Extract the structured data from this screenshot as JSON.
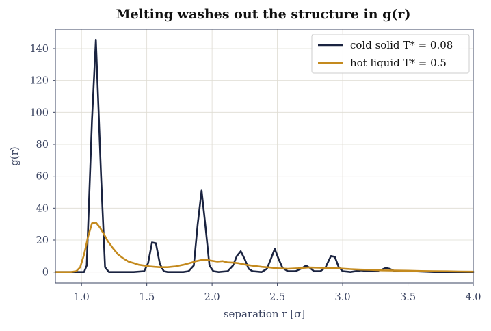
{
  "chart_data": {
    "type": "line",
    "title": "Melting washes out the structure in g(r)",
    "xlabel": "separation  r  [σ]",
    "ylabel": "g(r)",
    "xlim": [
      0.8,
      4.0
    ],
    "ylim": [
      -7,
      152
    ],
    "grid": true,
    "legend_position": "top-right",
    "x_ticks": [
      1.0,
      1.5,
      2.0,
      2.5,
      3.0,
      3.5,
      4.0
    ],
    "x_tick_labels": [
      "1.0",
      "1.5",
      "2.0",
      "2.5",
      "3.0",
      "3.5",
      "4.0"
    ],
    "y_ticks": [
      0,
      20,
      40,
      60,
      80,
      100,
      120,
      140
    ],
    "y_tick_labels": [
      "0",
      "20",
      "40",
      "60",
      "80",
      "100",
      "120",
      "140"
    ],
    "series": [
      {
        "name": "cold solid  T* = 0.08",
        "color": "#1a2340",
        "points": [
          [
            0.8,
            0.0
          ],
          [
            0.98,
            0.0
          ],
          [
            1.02,
            0.0
          ],
          [
            1.04,
            4.0
          ],
          [
            1.08,
            95.0
          ],
          [
            1.11,
            145.5
          ],
          [
            1.15,
            60.0
          ],
          [
            1.18,
            3.0
          ],
          [
            1.21,
            0.0
          ],
          [
            1.3,
            0.0
          ],
          [
            1.4,
            0.0
          ],
          [
            1.48,
            0.5
          ],
          [
            1.51,
            5.5
          ],
          [
            1.54,
            18.5
          ],
          [
            1.57,
            18.0
          ],
          [
            1.6,
            5.0
          ],
          [
            1.63,
            0.5
          ],
          [
            1.66,
            0.0
          ],
          [
            1.78,
            0.0
          ],
          [
            1.82,
            0.5
          ],
          [
            1.86,
            4.0
          ],
          [
            1.89,
            30.0
          ],
          [
            1.92,
            51.0
          ],
          [
            1.95,
            28.0
          ],
          [
            1.98,
            4.0
          ],
          [
            2.01,
            0.5
          ],
          [
            2.05,
            0.0
          ],
          [
            2.12,
            0.5
          ],
          [
            2.16,
            4.0
          ],
          [
            2.19,
            10.0
          ],
          [
            2.22,
            13.0
          ],
          [
            2.25,
            8.0
          ],
          [
            2.28,
            2.0
          ],
          [
            2.31,
            0.5
          ],
          [
            2.38,
            0.0
          ],
          [
            2.42,
            2.0
          ],
          [
            2.45,
            8.0
          ],
          [
            2.48,
            14.5
          ],
          [
            2.51,
            8.0
          ],
          [
            2.54,
            2.5
          ],
          [
            2.58,
            0.5
          ],
          [
            2.64,
            0.5
          ],
          [
            2.68,
            2.0
          ],
          [
            2.72,
            4.0
          ],
          [
            2.75,
            2.5
          ],
          [
            2.78,
            0.5
          ],
          [
            2.83,
            0.5
          ],
          [
            2.87,
            3.0
          ],
          [
            2.91,
            10.0
          ],
          [
            2.94,
            9.5
          ],
          [
            2.97,
            3.0
          ],
          [
            3.0,
            0.5
          ],
          [
            3.06,
            0.0
          ],
          [
            3.14,
            1.0
          ],
          [
            3.2,
            0.5
          ],
          [
            3.26,
            0.5
          ],
          [
            3.3,
            1.5
          ],
          [
            3.33,
            2.5
          ],
          [
            3.36,
            2.0
          ],
          [
            3.4,
            0.5
          ],
          [
            3.47,
            0.5
          ],
          [
            3.54,
            0.5
          ],
          [
            3.6,
            0.3
          ],
          [
            3.7,
            0.0
          ],
          [
            3.85,
            0.0
          ],
          [
            4.0,
            0.0
          ]
        ]
      },
      {
        "name": "hot liquid  T* = 0.5",
        "color": "#c48a1e",
        "points": [
          [
            0.8,
            0.0
          ],
          [
            0.92,
            0.0
          ],
          [
            0.96,
            0.5
          ],
          [
            0.99,
            3.0
          ],
          [
            1.02,
            11.0
          ],
          [
            1.05,
            22.0
          ],
          [
            1.08,
            30.5
          ],
          [
            1.11,
            31.0
          ],
          [
            1.14,
            28.0
          ],
          [
            1.17,
            24.0
          ],
          [
            1.2,
            19.5
          ],
          [
            1.24,
            15.0
          ],
          [
            1.28,
            11.0
          ],
          [
            1.32,
            8.5
          ],
          [
            1.36,
            6.5
          ],
          [
            1.4,
            5.5
          ],
          [
            1.44,
            4.5
          ],
          [
            1.48,
            4.0
          ],
          [
            1.52,
            3.5
          ],
          [
            1.56,
            3.2
          ],
          [
            1.6,
            3.0
          ],
          [
            1.66,
            3.0
          ],
          [
            1.72,
            3.5
          ],
          [
            1.78,
            4.5
          ],
          [
            1.84,
            5.8
          ],
          [
            1.88,
            6.8
          ],
          [
            1.92,
            7.5
          ],
          [
            1.96,
            7.5
          ],
          [
            2.0,
            7.0
          ],
          [
            2.04,
            6.5
          ],
          [
            2.08,
            6.8
          ],
          [
            2.12,
            6.0
          ],
          [
            2.16,
            5.8
          ],
          [
            2.2,
            5.5
          ],
          [
            2.26,
            4.5
          ],
          [
            2.32,
            3.8
          ],
          [
            2.38,
            3.2
          ],
          [
            2.44,
            2.8
          ],
          [
            2.5,
            2.3
          ],
          [
            2.58,
            2.0
          ],
          [
            2.66,
            2.3
          ],
          [
            2.74,
            2.8
          ],
          [
            2.82,
            2.7
          ],
          [
            2.9,
            2.5
          ],
          [
            2.98,
            2.2
          ],
          [
            3.06,
            1.8
          ],
          [
            3.14,
            1.5
          ],
          [
            3.22,
            1.3
          ],
          [
            3.3,
            1.0
          ],
          [
            3.4,
            0.9
          ],
          [
            3.5,
            0.8
          ],
          [
            3.6,
            0.6
          ],
          [
            3.7,
            0.5
          ],
          [
            3.8,
            0.4
          ],
          [
            3.9,
            0.3
          ],
          [
            4.0,
            0.2
          ]
        ]
      }
    ]
  }
}
